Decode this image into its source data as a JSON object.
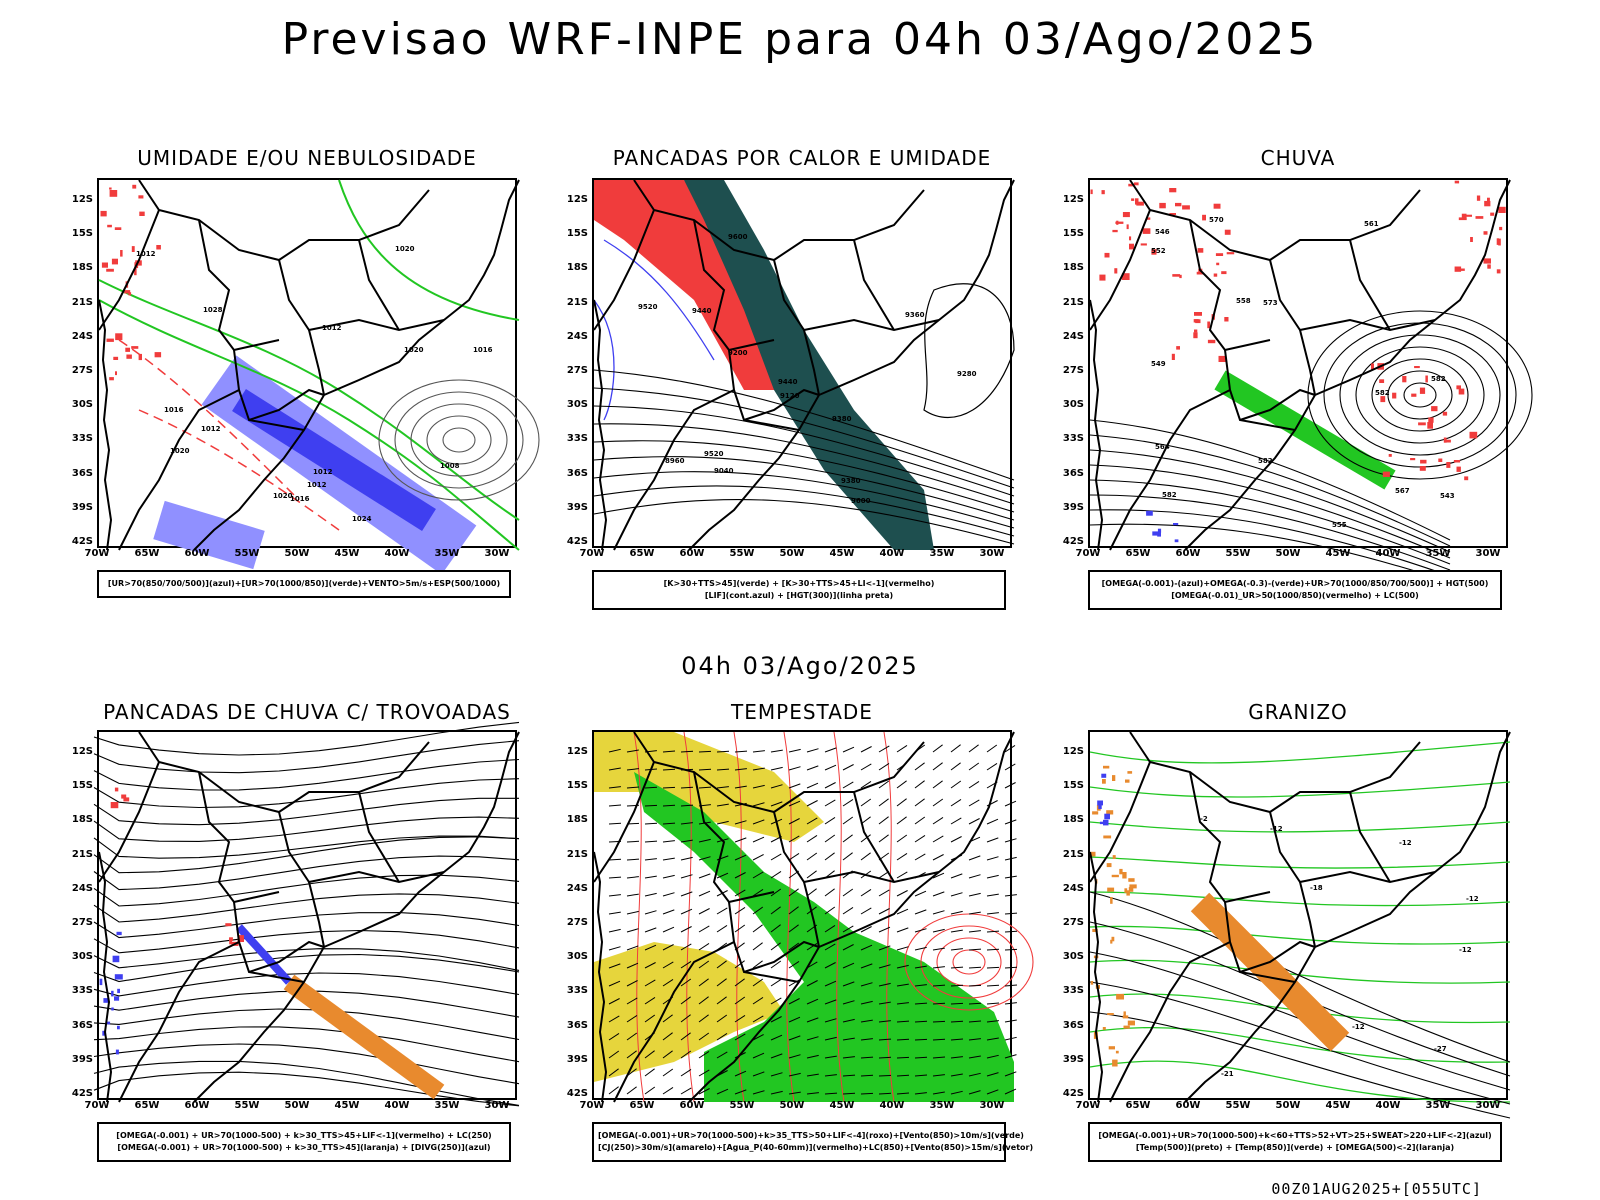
{
  "title": "Previsao WRF-INPE  para 04h 03/Ago/2025",
  "middle_title": "04h 03/Ago/2025",
  "footer": "00Z01AUG2025+[055UTC]",
  "axes": {
    "lat_labels": [
      "12S",
      "15S",
      "18S",
      "21S",
      "24S",
      "27S",
      "30S",
      "33S",
      "36S",
      "39S",
      "42S"
    ],
    "lon_labels": [
      "70W",
      "65W",
      "60W",
      "55W",
      "50W",
      "45W",
      "40W",
      "35W",
      "30W"
    ]
  },
  "colors": {
    "blue": "#3f3ff0",
    "green": "#22c622",
    "red": "#f03c3c",
    "dark_teal": "#1e4f4f",
    "yellow": "#e6d53c",
    "orange": "#e88a2e",
    "lilac": "#9090ff"
  },
  "panels": [
    {
      "title": "UMIDADE E/OU NEBULOSIDADE",
      "legend": [
        "[UR>70(850/700/500)](azul)+[UR>70(1000/850)](verde)+VENTO>5m/s+ESP(500/1000)"
      ],
      "contour_labels": [
        "1020",
        "1012",
        "1012",
        "1012",
        "1016",
        "1020",
        "1012",
        "1016",
        "1020",
        "1028",
        "1012",
        "1008",
        "1016",
        "1024",
        "1020"
      ]
    },
    {
      "title": "PANCADAS POR CALOR E UMIDADE",
      "legend": [
        "[K>30+TTS>45](verde) + [K>30+TTS>45+LI<-1](vermelho)",
        "[LIF](cont.azul) + [HGT(300)](linha preta)"
      ],
      "contour_labels": [
        "9600",
        "9600",
        "9520",
        "9440",
        "9360",
        "9380",
        "9280",
        "9200",
        "9120",
        "9040",
        "8960",
        "9520",
        "9440",
        "9380"
      ]
    },
    {
      "title": "CHUVA",
      "legend": [
        "[OMEGA(-0.001)-(azul)+OMEGA(-0.3)-(verde)+UR>70(1000/850/700/500)] + HGT(500)",
        "[OMEGA(-0.01)_UR>50(1000/850)(vermelho) + LC(500)"
      ],
      "contour_labels": [
        "582",
        "582",
        "582",
        "570",
        "573",
        "567",
        "564",
        "561",
        "558",
        "555",
        "552",
        "549",
        "546",
        "543",
        "582"
      ]
    },
    {
      "title": "PANCADAS DE CHUVA C/ TROVOADAS",
      "legend": [
        "[OMEGA(-0.001) + UR>70(1000-500) + k>30_TTS>45+LIF<-1](vermelho) + LC(250)",
        "[OMEGA(-0.001) + UR>70(1000-500) + k>30_TTS>45](laranja) + [DIVG(250)](azul)"
      ]
    },
    {
      "title": "TEMPESTADE",
      "legend": [
        "[OMEGA(-0.001)+UR>70(1000-500)+k>35_TTS>50+LIF<-4](roxo)+[Vento(850)>10m/s](verde)",
        "[CJ(250)>30m/s](amarelo)+[Agua_P(40-60mm)](vermelho)+LC(850)+[Vento(850)>15m/s](vetor)"
      ]
    },
    {
      "title": "GRANIZO",
      "legend": [
        "[OMEGA(-0.001)+UR>70(1000-500)+k<60+TTS>52+VT>25+SWEAT>220+LIF<-2](azul)",
        "[Temp(500)](preto) + [Temp(850)](verde) + [OMEGA(500)<-2](laranja)"
      ],
      "contour_labels": [
        "-12",
        "-12",
        "-12",
        "-12",
        "-2",
        "-21",
        "-18",
        "-27",
        "-12"
      ]
    }
  ]
}
